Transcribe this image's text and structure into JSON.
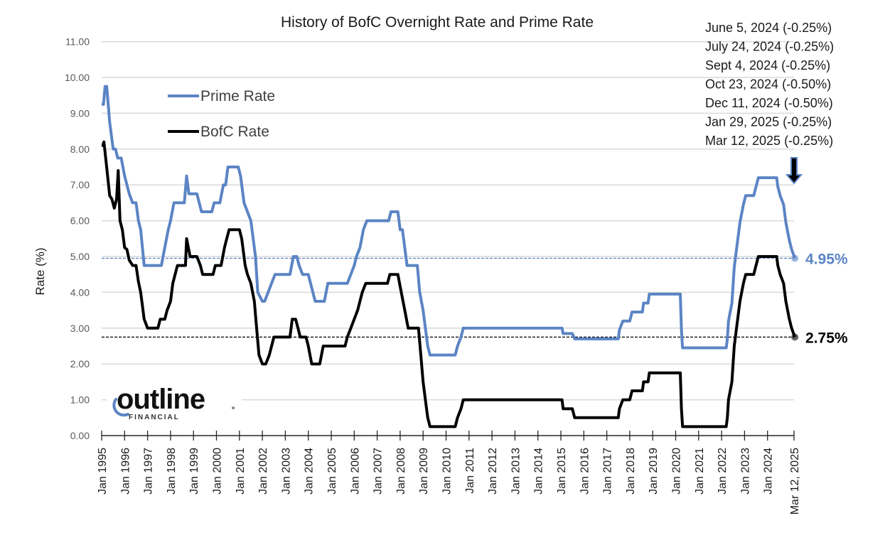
{
  "chart_data": {
    "type": "line",
    "title": "History of BofC Overnight Rate and Prime Rate",
    "xlabel": "",
    "ylabel": "Rate (%)",
    "ylim": [
      0,
      11
    ],
    "xlim": [
      "Jan 1995",
      "Mar 12, 2025"
    ],
    "grid": true,
    "legend_position": "upper-left",
    "y_ticks": [
      "0.00",
      "1.00",
      "2.00",
      "3.00",
      "4.00",
      "5.00",
      "6.00",
      "7.00",
      "8.00",
      "9.00",
      "10.00",
      "11.00"
    ],
    "x_ticks": [
      "Jan 1995",
      "Jan 1996",
      "Jan 1997",
      "Jan 1998",
      "Jan 1999",
      "Jan 2000",
      "Jan 2001",
      "Jan 2002",
      "Jan 2003",
      "Jan 2004",
      "Jan 2005",
      "Jan 2006",
      "Jan 2007",
      "Jan 2008",
      "Jan 2009",
      "Jan 2010",
      "Jan 2011",
      "Jan 2012",
      "Jan 2013",
      "Jan 2014",
      "Jan 2015",
      "Jan 2016",
      "Jan 2017",
      "Jan 2018",
      "Jan 2019",
      "Jan 2020",
      "Jan 2021",
      "Jan 2022",
      "Jan 2023",
      "Jan 2024",
      "Mar 12, 2025"
    ],
    "series": [
      {
        "name": "Prime Rate",
        "color": "#5b84c4",
        "points": [
          [
            1995.0,
            9.25
          ],
          [
            1995.08,
            9.25
          ],
          [
            1995.15,
            9.75
          ],
          [
            1995.22,
            9.75
          ],
          [
            1995.35,
            8.75
          ],
          [
            1995.5,
            8.0
          ],
          [
            1995.6,
            8.0
          ],
          [
            1995.7,
            7.75
          ],
          [
            1995.85,
            7.75
          ],
          [
            1996.0,
            7.25
          ],
          [
            1996.2,
            6.75
          ],
          [
            1996.35,
            6.5
          ],
          [
            1996.5,
            6.5
          ],
          [
            1996.6,
            6.0
          ],
          [
            1996.7,
            5.75
          ],
          [
            1996.85,
            4.75
          ],
          [
            1997.6,
            4.75
          ],
          [
            1997.75,
            5.25
          ],
          [
            1997.9,
            5.75
          ],
          [
            1998.0,
            6.0
          ],
          [
            1998.15,
            6.5
          ],
          [
            1998.6,
            6.5
          ],
          [
            1998.7,
            7.25
          ],
          [
            1998.8,
            6.75
          ],
          [
            1999.15,
            6.75
          ],
          [
            1999.35,
            6.25
          ],
          [
            1999.8,
            6.25
          ],
          [
            1999.9,
            6.5
          ],
          [
            2000.15,
            6.5
          ],
          [
            2000.3,
            7.0
          ],
          [
            2000.4,
            7.0
          ],
          [
            2000.5,
            7.5
          ],
          [
            2000.95,
            7.5
          ],
          [
            2001.05,
            7.25
          ],
          [
            2001.2,
            6.5
          ],
          [
            2001.35,
            6.25
          ],
          [
            2001.5,
            6.0
          ],
          [
            2001.7,
            5.0
          ],
          [
            2001.8,
            4.0
          ],
          [
            2002.0,
            3.75
          ],
          [
            2002.1,
            3.75
          ],
          [
            2002.25,
            4.0
          ],
          [
            2002.4,
            4.25
          ],
          [
            2002.55,
            4.5
          ],
          [
            2003.2,
            4.5
          ],
          [
            2003.35,
            5.0
          ],
          [
            2003.5,
            5.0
          ],
          [
            2003.6,
            4.75
          ],
          [
            2003.75,
            4.5
          ],
          [
            2004.0,
            4.5
          ],
          [
            2004.1,
            4.25
          ],
          [
            2004.3,
            3.75
          ],
          [
            2004.7,
            3.75
          ],
          [
            2004.85,
            4.25
          ],
          [
            2005.7,
            4.25
          ],
          [
            2005.85,
            4.5
          ],
          [
            2006.0,
            4.75
          ],
          [
            2006.1,
            5.0
          ],
          [
            2006.25,
            5.25
          ],
          [
            2006.4,
            5.75
          ],
          [
            2006.55,
            6.0
          ],
          [
            2007.5,
            6.0
          ],
          [
            2007.6,
            6.25
          ],
          [
            2007.9,
            6.25
          ],
          [
            2008.0,
            5.75
          ],
          [
            2008.1,
            5.75
          ],
          [
            2008.3,
            4.75
          ],
          [
            2008.75,
            4.75
          ],
          [
            2008.85,
            4.0
          ],
          [
            2009.0,
            3.5
          ],
          [
            2009.1,
            3.0
          ],
          [
            2009.2,
            2.5
          ],
          [
            2009.3,
            2.25
          ],
          [
            2010.4,
            2.25
          ],
          [
            2010.5,
            2.5
          ],
          [
            2010.65,
            2.75
          ],
          [
            2010.75,
            3.0
          ],
          [
            2015.05,
            3.0
          ],
          [
            2015.1,
            2.85
          ],
          [
            2015.5,
            2.85
          ],
          [
            2015.6,
            2.7
          ],
          [
            2017.5,
            2.7
          ],
          [
            2017.55,
            2.95
          ],
          [
            2017.7,
            3.2
          ],
          [
            2018.0,
            3.2
          ],
          [
            2018.1,
            3.45
          ],
          [
            2018.55,
            3.45
          ],
          [
            2018.6,
            3.7
          ],
          [
            2018.8,
            3.7
          ],
          [
            2018.85,
            3.95
          ],
          [
            2020.2,
            3.95
          ],
          [
            2020.25,
            2.95
          ],
          [
            2020.3,
            2.45
          ],
          [
            2022.2,
            2.45
          ],
          [
            2022.25,
            2.7
          ],
          [
            2022.3,
            3.2
          ],
          [
            2022.45,
            3.7
          ],
          [
            2022.55,
            4.7
          ],
          [
            2022.7,
            5.45
          ],
          [
            2022.8,
            5.95
          ],
          [
            2022.95,
            6.45
          ],
          [
            2023.05,
            6.7
          ],
          [
            2023.4,
            6.7
          ],
          [
            2023.5,
            6.95
          ],
          [
            2023.6,
            7.2
          ],
          [
            2024.4,
            7.2
          ],
          [
            2024.45,
            6.95
          ],
          [
            2024.55,
            6.7
          ],
          [
            2024.7,
            6.45
          ],
          [
            2024.8,
            5.95
          ],
          [
            2024.95,
            5.45
          ],
          [
            2025.05,
            5.2
          ],
          [
            2025.19,
            4.95
          ]
        ]
      },
      {
        "name": "BofC Rate",
        "color": "#000000",
        "points": [
          [
            1995.0,
            8.1
          ],
          [
            1995.05,
            8.1
          ],
          [
            1995.1,
            8.2
          ],
          [
            1995.2,
            7.6
          ],
          [
            1995.35,
            6.7
          ],
          [
            1995.45,
            6.6
          ],
          [
            1995.55,
            6.35
          ],
          [
            1995.65,
            6.6
          ],
          [
            1995.72,
            7.4
          ],
          [
            1995.8,
            6.0
          ],
          [
            1995.9,
            5.75
          ],
          [
            1996.0,
            5.25
          ],
          [
            1996.1,
            5.2
          ],
          [
            1996.2,
            4.9
          ],
          [
            1996.35,
            4.75
          ],
          [
            1996.5,
            4.75
          ],
          [
            1996.6,
            4.3
          ],
          [
            1996.7,
            4.0
          ],
          [
            1996.85,
            3.25
          ],
          [
            1997.0,
            3.0
          ],
          [
            1997.45,
            3.0
          ],
          [
            1997.55,
            3.25
          ],
          [
            1997.75,
            3.25
          ],
          [
            1997.85,
            3.5
          ],
          [
            1998.0,
            3.75
          ],
          [
            1998.1,
            4.25
          ],
          [
            1998.3,
            4.75
          ],
          [
            1998.65,
            4.75
          ],
          [
            1998.7,
            5.5
          ],
          [
            1998.85,
            5.0
          ],
          [
            1999.15,
            5.0
          ],
          [
            1999.3,
            4.75
          ],
          [
            1999.4,
            4.5
          ],
          [
            1999.85,
            4.5
          ],
          [
            1999.95,
            4.75
          ],
          [
            2000.2,
            4.75
          ],
          [
            2000.35,
            5.25
          ],
          [
            2000.45,
            5.5
          ],
          [
            2000.55,
            5.75
          ],
          [
            2001.0,
            5.75
          ],
          [
            2001.1,
            5.5
          ],
          [
            2001.25,
            4.75
          ],
          [
            2001.35,
            4.5
          ],
          [
            2001.5,
            4.25
          ],
          [
            2001.65,
            3.75
          ],
          [
            2001.75,
            3.0
          ],
          [
            2001.85,
            2.25
          ],
          [
            2002.0,
            2.0
          ],
          [
            2002.15,
            2.0
          ],
          [
            2002.3,
            2.25
          ],
          [
            2002.5,
            2.75
          ],
          [
            2003.2,
            2.75
          ],
          [
            2003.3,
            3.25
          ],
          [
            2003.45,
            3.25
          ],
          [
            2003.55,
            3.0
          ],
          [
            2003.65,
            2.75
          ],
          [
            2003.9,
            2.75
          ],
          [
            2004.0,
            2.5
          ],
          [
            2004.15,
            2.0
          ],
          [
            2004.5,
            2.0
          ],
          [
            2004.65,
            2.5
          ],
          [
            2005.6,
            2.5
          ],
          [
            2005.7,
            2.75
          ],
          [
            2005.85,
            3.0
          ],
          [
            2006.0,
            3.25
          ],
          [
            2006.15,
            3.5
          ],
          [
            2006.35,
            4.0
          ],
          [
            2006.5,
            4.25
          ],
          [
            2007.45,
            4.25
          ],
          [
            2007.55,
            4.5
          ],
          [
            2007.9,
            4.5
          ],
          [
            2008.05,
            4.0
          ],
          [
            2008.2,
            3.5
          ],
          [
            2008.35,
            3.0
          ],
          [
            2008.8,
            3.0
          ],
          [
            2008.9,
            2.25
          ],
          [
            2009.0,
            1.5
          ],
          [
            2009.1,
            1.0
          ],
          [
            2009.2,
            0.5
          ],
          [
            2009.3,
            0.25
          ],
          [
            2010.4,
            0.25
          ],
          [
            2010.5,
            0.5
          ],
          [
            2010.65,
            0.75
          ],
          [
            2010.75,
            1.0
          ],
          [
            2015.05,
            1.0
          ],
          [
            2015.1,
            0.75
          ],
          [
            2015.5,
            0.75
          ],
          [
            2015.6,
            0.5
          ],
          [
            2017.5,
            0.5
          ],
          [
            2017.55,
            0.75
          ],
          [
            2017.7,
            1.0
          ],
          [
            2018.0,
            1.0
          ],
          [
            2018.1,
            1.25
          ],
          [
            2018.55,
            1.25
          ],
          [
            2018.6,
            1.5
          ],
          [
            2018.8,
            1.5
          ],
          [
            2018.85,
            1.75
          ],
          [
            2020.2,
            1.75
          ],
          [
            2020.25,
            0.75
          ],
          [
            2020.3,
            0.25
          ],
          [
            2022.2,
            0.25
          ],
          [
            2022.25,
            0.5
          ],
          [
            2022.3,
            1.0
          ],
          [
            2022.45,
            1.5
          ],
          [
            2022.55,
            2.5
          ],
          [
            2022.7,
            3.25
          ],
          [
            2022.8,
            3.75
          ],
          [
            2022.95,
            4.25
          ],
          [
            2023.05,
            4.5
          ],
          [
            2023.4,
            4.5
          ],
          [
            2023.5,
            4.75
          ],
          [
            2023.6,
            5.0
          ],
          [
            2024.4,
            5.0
          ],
          [
            2024.45,
            4.75
          ],
          [
            2024.55,
            4.5
          ],
          [
            2024.7,
            4.25
          ],
          [
            2024.8,
            3.75
          ],
          [
            2024.95,
            3.25
          ],
          [
            2025.05,
            3.0
          ],
          [
            2025.19,
            2.75
          ]
        ]
      }
    ],
    "reference_lines": [
      {
        "name": "Prime Rate current",
        "value": 4.95,
        "color": "#5b84c4",
        "style": "dashed",
        "label": "4.95%"
      },
      {
        "name": "BofC Rate current",
        "value": 2.75,
        "color": "#000000",
        "style": "dashed",
        "label": "2.75%"
      }
    ],
    "annotations": [
      "June 5, 2024 (-0.25%)",
      "July 24, 2024 (-0.25%)",
      "Sept 4, 2024 (-0.25%)",
      "Oct 23, 2024 (-0.50%)",
      "Dec 11, 2024 (-0.50%)",
      "Jan 29, 2025 (-0.25%)",
      "Mar 12, 2025 (-0.25%)"
    ]
  },
  "legend": {
    "prime_label": "Prime Rate",
    "bofc_label": "BofC Rate"
  },
  "logo": {
    "word": "outline",
    "sub": "FINANCIAL",
    "accent": "#5b84c4"
  }
}
